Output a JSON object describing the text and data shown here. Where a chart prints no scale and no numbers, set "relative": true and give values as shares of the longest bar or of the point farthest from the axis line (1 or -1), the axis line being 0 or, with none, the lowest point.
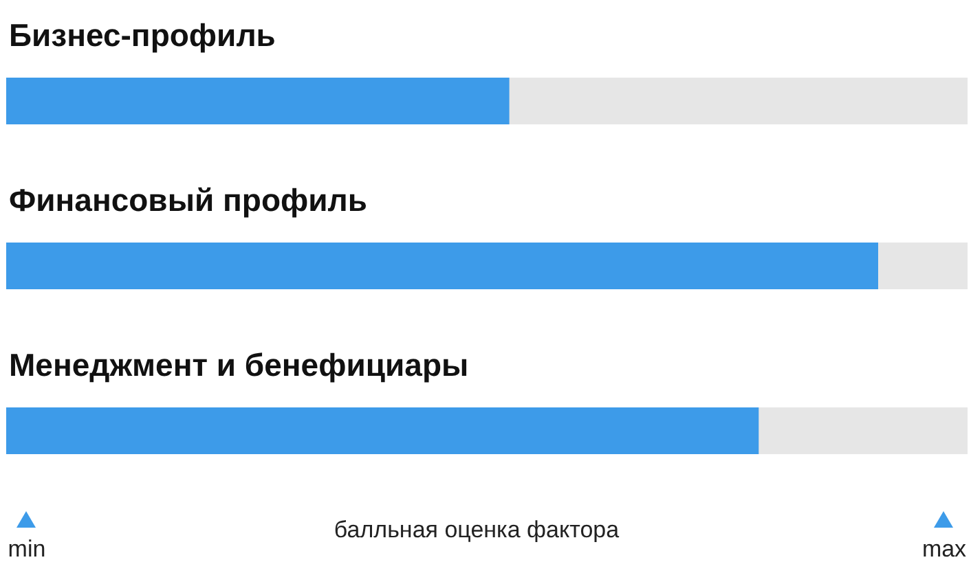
{
  "chart_data": {
    "type": "bar",
    "orientation": "horizontal",
    "relative": true,
    "categories": [
      "Бизнес-профиль",
      "Финансовый профиль",
      "Менеджмент и бенефициары"
    ],
    "values": [
      0.577,
      1,
      0.863
    ],
    "color": "#3d9be9",
    "xlabel": "балльная оценка фактора",
    "annotations": [
      "min",
      "max"
    ]
  }
}
